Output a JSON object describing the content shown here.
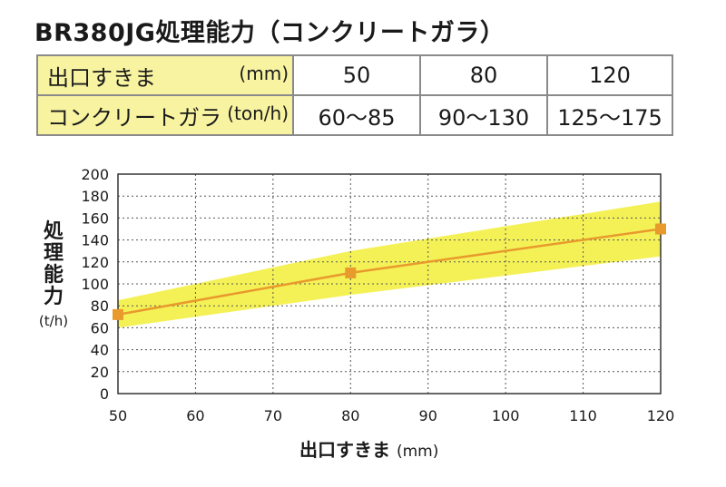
{
  "title": "BR380JG処理能力（コンクリートガラ）",
  "table": {
    "rows": [
      {
        "label": "出口すきま",
        "unit": "(mm)",
        "values": [
          "50",
          "80",
          "120"
        ]
      },
      {
        "label": "コンクリートガラ",
        "unit": "(ton/h)",
        "values": [
          "60～85",
          "90～130",
          "125～175"
        ]
      }
    ]
  },
  "chart_data": {
    "type": "line",
    "xlabel": "出口すきま",
    "xunit": "(mm)",
    "ylabel": "処理能力",
    "yunit": "(t/h)",
    "xlim": [
      50,
      120
    ],
    "ylim": [
      0,
      200
    ],
    "x_ticks": [
      50,
      60,
      70,
      80,
      90,
      100,
      110,
      120
    ],
    "y_ticks": [
      0,
      20,
      40,
      60,
      80,
      100,
      120,
      140,
      160,
      180,
      200
    ],
    "grid": true,
    "series": [
      {
        "x": [
          50,
          80,
          120
        ],
        "y": [
          72,
          110,
          150
        ],
        "color": "#e89a2c"
      }
    ],
    "band": {
      "x": [
        50,
        80,
        120
      ],
      "low": [
        60,
        90,
        125
      ],
      "high": [
        85,
        130,
        175
      ],
      "color": "#f2ee3a"
    }
  }
}
